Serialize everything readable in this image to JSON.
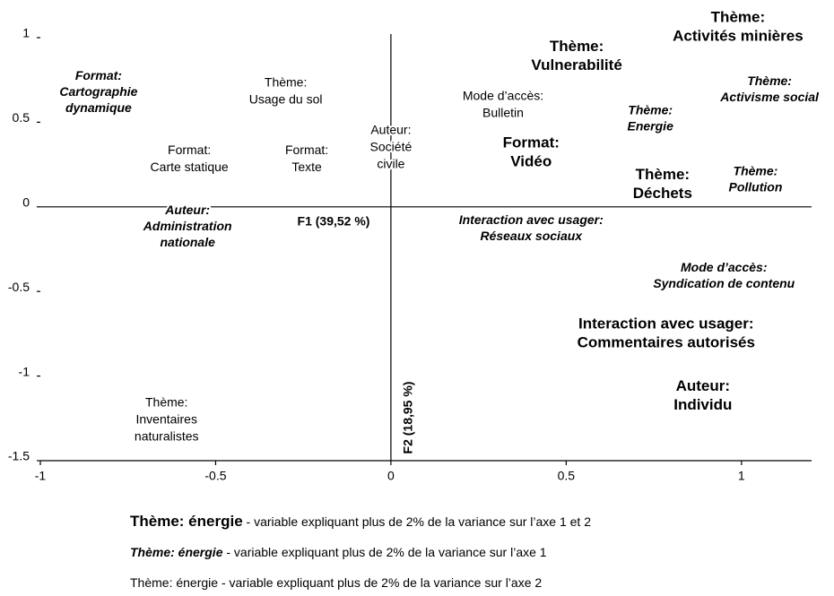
{
  "chart_data": {
    "type": "label-scatter",
    "x_axis_label": "F1 (39,52 %)",
    "y_axis_label": "F2 (18,95 %)",
    "xlim": [
      -1,
      1.2
    ],
    "ylim": [
      -1.5,
      1
    ],
    "xticks": [
      -1,
      -0.5,
      0,
      0.5,
      1
    ],
    "yticks": [
      1,
      0.5,
      0,
      -0.5,
      -1,
      -1.5
    ],
    "color": "#000000",
    "labels": [
      {
        "lines": [
          "Format:",
          "Cartographie",
          "dynamique"
        ],
        "x": -0.834,
        "y": 0.675,
        "style": "axis1"
      },
      {
        "lines": [
          "Thème:",
          "Usage du sol"
        ],
        "x": -0.3,
        "y": 0.68,
        "style": "axis2"
      },
      {
        "lines": [
          "Auteur:",
          "Société",
          "civile"
        ],
        "x": 0.0,
        "y": 0.35,
        "style": "axis2"
      },
      {
        "lines": [
          "Format:",
          "Texte"
        ],
        "x": -0.24,
        "y": 0.28,
        "style": "axis2"
      },
      {
        "lines": [
          "Format:",
          "Carte statique"
        ],
        "x": -0.575,
        "y": 0.28,
        "style": "axis2"
      },
      {
        "lines": [
          "Auteur:",
          "Administration",
          "nationale"
        ],
        "x": -0.58,
        "y": -0.12,
        "style": "axis1"
      },
      {
        "lines": [
          "Mode d’accès:",
          "Bulletin"
        ],
        "x": 0.32,
        "y": 0.6,
        "style": "axis2"
      },
      {
        "lines": [
          "Thème:",
          "Vulnerabilité"
        ],
        "x": 0.53,
        "y": 0.89,
        "style": "both"
      },
      {
        "lines": [
          "Thème:",
          "Activités minières"
        ],
        "x": 0.99,
        "y": 1.06,
        "style": "both"
      },
      {
        "lines": [
          "Thème:",
          "Activisme social"
        ],
        "x": 1.08,
        "y": 0.69,
        "style": "axis1"
      },
      {
        "lines": [
          "Thème:",
          "Energie"
        ],
        "x": 0.74,
        "y": 0.52,
        "style": "axis1"
      },
      {
        "lines": [
          "Format:",
          "Vidéo"
        ],
        "x": 0.4,
        "y": 0.32,
        "style": "both"
      },
      {
        "lines": [
          "Thème:",
          "Déchets"
        ],
        "x": 0.775,
        "y": 0.13,
        "style": "both"
      },
      {
        "lines": [
          "Thème:",
          "Pollution"
        ],
        "x": 1.04,
        "y": 0.16,
        "style": "axis1"
      },
      {
        "lines": [
          "Interaction avec usager:",
          "Réseaux sociaux"
        ],
        "x": 0.4,
        "y": -0.13,
        "style": "axis1"
      },
      {
        "lines": [
          "Mode d’accès:",
          "Syndication de contenu"
        ],
        "x": 0.95,
        "y": -0.41,
        "style": "axis1"
      },
      {
        "lines": [
          "Interaction avec usager:",
          "Commentaires autorisés"
        ],
        "x": 0.785,
        "y": -0.75,
        "style": "both"
      },
      {
        "lines": [
          "Auteur:",
          "Individu"
        ],
        "x": 0.89,
        "y": -1.12,
        "style": "both"
      },
      {
        "lines": [
          "Thème:",
          "Inventaires",
          "naturalistes"
        ],
        "x": -0.64,
        "y": -1.26,
        "style": "axis2"
      }
    ],
    "legend": [
      {
        "sample": "Thème: énergie",
        "text": " - variable expliquant plus de 2% de la variance sur l’axe 1 et 2",
        "style": "both"
      },
      {
        "sample": "Thème: énergie",
        "text": " - variable expliquant plus de 2% de la variance sur l’axe 1",
        "style": "axis1"
      },
      {
        "sample": "Thème: énergie",
        "text": " - variable expliquant plus de 2% de la variance sur l’axe 2",
        "style": "axis2"
      }
    ]
  }
}
